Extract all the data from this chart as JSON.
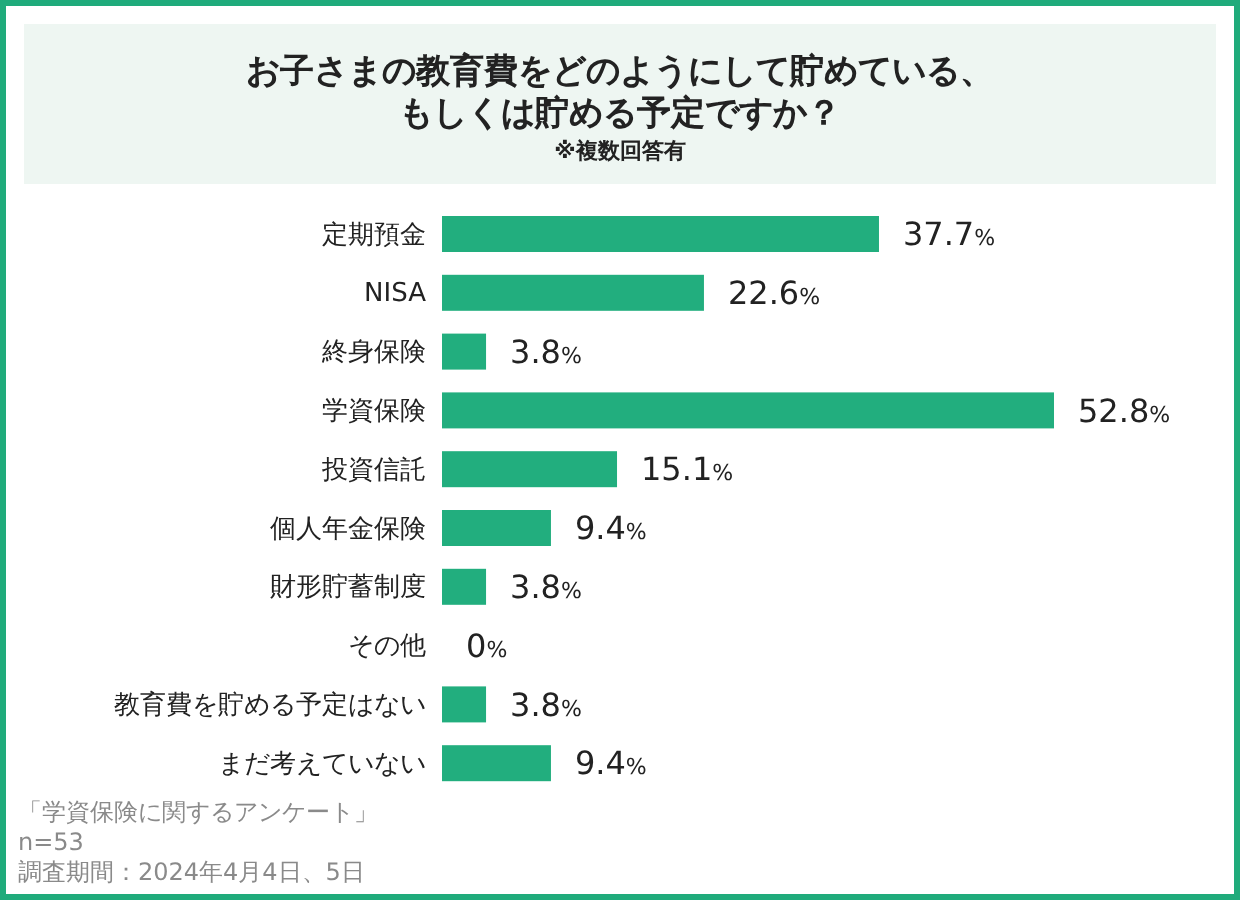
{
  "chart_data": {
    "type": "bar",
    "orientation": "horizontal",
    "title": "お子さまの教育費をどのようにして貯めている、もしくは貯める予定ですか？",
    "subtitle": "※複数回答有",
    "categories": [
      "定期預金",
      "NISA",
      "終身保険",
      "学資保険",
      "投資信託",
      "個人年金保険",
      "財形貯蓄制度",
      "その他",
      "教育費を貯める予定はない",
      "まだ考えていない"
    ],
    "values": [
      37.7,
      22.6,
      3.8,
      52.8,
      15.1,
      9.4,
      3.8,
      0,
      3.8,
      9.4
    ],
    "value_labels": [
      "37.7%",
      "22.6%",
      "3.8%",
      "52.8%",
      "15.1%",
      "9.4%",
      "3.8%",
      "0%",
      "3.8%",
      "9.4%"
    ],
    "color": "#22ae7e",
    "annotations": [
      "「学資保険に関するアンケート」",
      "n=53",
      "調査期間：2024年4月4日、5日"
    ]
  }
}
